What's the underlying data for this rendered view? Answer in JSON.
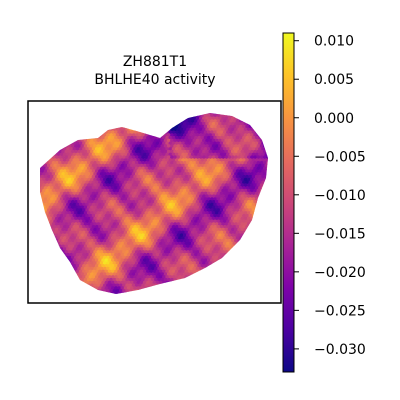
{
  "chart_data": {
    "type": "heatmap",
    "title": "ZH881T1",
    "subtitle": "BHLHE40 activity",
    "xlabel": "",
    "ylabel": "",
    "colorbar": {
      "colormap": "plasma",
      "vmin": -0.033,
      "vmax": 0.011,
      "ticks": [
        0.01,
        0.005,
        0.0,
        -0.005,
        -0.01,
        -0.015,
        -0.02,
        -0.025,
        -0.03
      ],
      "tick_labels": [
        "0.010",
        "0.005",
        "0.000",
        "−0.005",
        "−0.010",
        "−0.015",
        "−0.020",
        "−0.025",
        "−0.030"
      ]
    },
    "colors": {
      "plasma": [
        "#0d0887",
        "#4c02a1",
        "#7e03a8",
        "#a92395",
        "#cc4778",
        "#e56b5d",
        "#f89540",
        "#fdc328",
        "#f0f921"
      ]
    },
    "axes_frame": true,
    "grid": false
  }
}
